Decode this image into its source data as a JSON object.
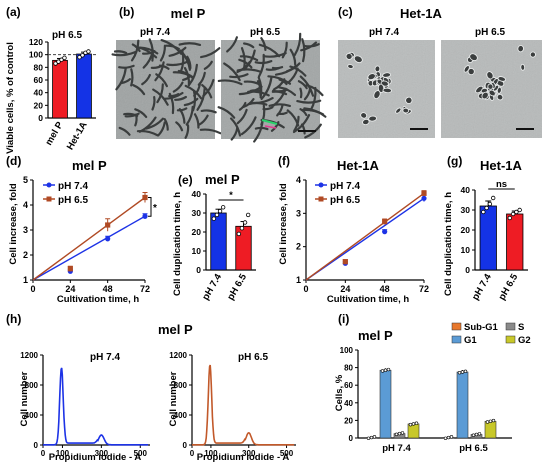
{
  "panels": {
    "a": {
      "letter": "(a)",
      "ylabel": "Viable cells, % of control",
      "condition": "pH 6.5",
      "bar_colors": [
        "#ee1c24",
        "#1433e6"
      ]
    },
    "b": {
      "letter": "(b)",
      "title": "mel P",
      "labels": [
        "pH 7.4",
        "pH 6.5"
      ]
    },
    "c": {
      "letter": "(c)",
      "title": "Het-1A",
      "labels": [
        "pH 7.4",
        "pH 6.5"
      ]
    },
    "d": {
      "letter": "(d)",
      "title": "mel P",
      "xlabel": "Cultivation time, h",
      "ylabel": "Cell increase, fold",
      "legend": [
        "pH 7.4",
        "pH 6.5"
      ],
      "sig": "*"
    },
    "e": {
      "letter": "(e)",
      "title": "mel P",
      "ylabel": "Cell duplication time, h",
      "sig": "*"
    },
    "f": {
      "letter": "(f)",
      "title": "Het-1A",
      "xlabel": "Cultivation time, h",
      "ylabel": "Cell increase, fold",
      "legend": [
        "pH 7.4",
        "pH 6.5"
      ]
    },
    "g": {
      "letter": "(g)",
      "title": "Het-1A",
      "ylabel": "Cell duplication time, h",
      "sig": "ns"
    },
    "h": {
      "letter": "(h)",
      "title": "mel P",
      "xlabel": "Propidium iodide - A",
      "ylabel": "Cell number",
      "labels": [
        "pH 7.4",
        "pH 6.5"
      ]
    },
    "i": {
      "letter": "(i)",
      "title": "mel P",
      "ylabel": "Cells, %",
      "legend": [
        "Sub-G1",
        "S",
        "G1",
        "G2"
      ],
      "legend_colors": [
        "#e8782c",
        "#8a8a8a",
        "#5b9bd5",
        "#c8c82a"
      ]
    }
  },
  "chart_data": [
    {
      "id": "a",
      "type": "bar",
      "categories": [
        "mel P",
        "Het-1A"
      ],
      "values": [
        91,
        101
      ],
      "errors": [
        3,
        3
      ],
      "points": [
        [
          86,
          89,
          92,
          95
        ],
        [
          96,
          99,
          103,
          105
        ]
      ],
      "ylim": [
        0,
        120
      ],
      "yticks": [
        0,
        20,
        40,
        60,
        80,
        100,
        120
      ],
      "reference_line": 100
    },
    {
      "id": "d",
      "type": "line",
      "x": [
        0,
        24,
        48,
        72
      ],
      "xticks": [
        0,
        24,
        48,
        72
      ],
      "ylim": [
        1,
        5
      ],
      "yticks": [
        1,
        2,
        3,
        4,
        5
      ],
      "series": [
        {
          "name": "pH 7.4",
          "color": "#1d33e6",
          "values": [
            1,
            1.35,
            2.65,
            3.55
          ],
          "errors": [
            0,
            0.08,
            0.1,
            0.1
          ]
        },
        {
          "name": "pH 6.5",
          "color": "#b04a24",
          "values": [
            1,
            1.45,
            3.2,
            4.3
          ],
          "errors": [
            0,
            0.1,
            0.25,
            0.2
          ]
        }
      ]
    },
    {
      "id": "e",
      "type": "bar",
      "categories": [
        "pH 7.4",
        "pH 6.5"
      ],
      "values": [
        30,
        23
      ],
      "errors": [
        2,
        2.5
      ],
      "points": [
        [
          27,
          29,
          31,
          33
        ],
        [
          19,
          22,
          25,
          29
        ]
      ],
      "ylim": [
        0,
        40
      ],
      "yticks": [
        0,
        10,
        20,
        30,
        40
      ],
      "colors": [
        "#1433e6",
        "#ee1c24"
      ]
    },
    {
      "id": "f",
      "type": "line",
      "x": [
        0,
        24,
        48,
        72
      ],
      "xticks": [
        0,
        24,
        48,
        72
      ],
      "ylim": [
        1,
        4
      ],
      "yticks": [
        1,
        2,
        3,
        4
      ],
      "series": [
        {
          "name": "pH 7.4",
          "color": "#1d33e6",
          "values": [
            1,
            1.5,
            2.45,
            3.45
          ],
          "errors": [
            0,
            0.06,
            0.06,
            0.1
          ]
        },
        {
          "name": "pH 6.5",
          "color": "#b04a24",
          "values": [
            1,
            1.55,
            2.75,
            3.6
          ],
          "errors": [
            0,
            0.06,
            0.08,
            0.08
          ]
        }
      ]
    },
    {
      "id": "g",
      "type": "bar",
      "categories": [
        "pH 7.4",
        "pH 6.5"
      ],
      "values": [
        32,
        28
      ],
      "errors": [
        2.5,
        1.5
      ],
      "points": [
        [
          29,
          31,
          33,
          36
        ],
        [
          26,
          28,
          29,
          30
        ]
      ],
      "ylim": [
        0,
        40
      ],
      "yticks": [
        0,
        10,
        20,
        30,
        40
      ],
      "colors": [
        "#1433e6",
        "#ee1c24"
      ]
    },
    {
      "id": "h",
      "type": "line",
      "xticks": [
        0,
        100,
        300,
        500
      ],
      "ylim": [
        0,
        1200
      ],
      "yticks": [
        0,
        400,
        800,
        1200
      ],
      "series": [
        {
          "name": "pH 7.4",
          "color": "#1d33e6",
          "peaks": [
            {
              "x": 95,
              "height": 1030
            },
            {
              "x": 300,
              "height": 130
            }
          ]
        },
        {
          "name": "pH 6.5",
          "color": "#c2592a",
          "peaks": [
            {
              "x": 95,
              "height": 1070
            },
            {
              "x": 300,
              "height": 160
            }
          ]
        }
      ]
    },
    {
      "id": "i",
      "type": "bar",
      "categories": [
        "pH 7.4",
        "pH 6.5"
      ],
      "ylim": [
        0,
        100
      ],
      "yticks": [
        0,
        20,
        40,
        60,
        80,
        100
      ],
      "series": [
        {
          "name": "Sub-G1",
          "color": "#e8782c",
          "values": [
            0.5,
            0.5
          ]
        },
        {
          "name": "G1",
          "color": "#5b9bd5",
          "values": [
            77,
            75
          ]
        },
        {
          "name": "S",
          "color": "#8a8a8a",
          "values": [
            5,
            4
          ]
        },
        {
          "name": "G2",
          "color": "#c8c82a",
          "values": [
            16,
            19
          ]
        }
      ]
    }
  ]
}
